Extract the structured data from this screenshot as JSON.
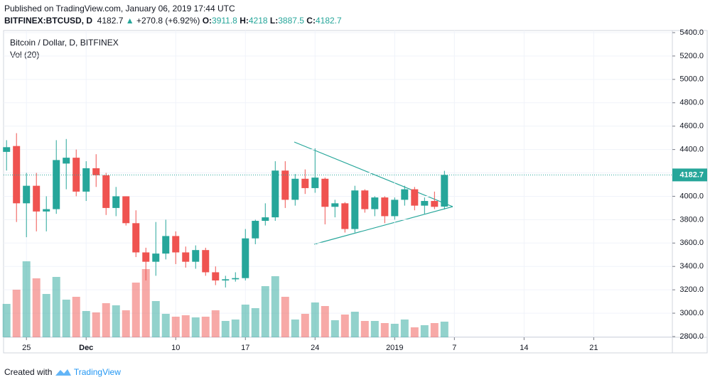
{
  "header": {
    "published": "Published on TradingView.com, January 06, 2019 17:44 UTC",
    "symbol": "BITFINEX:BTCUSD, D",
    "change": "+270.8 (+6.92%)",
    "o_label": "O:",
    "h_label": "H:",
    "l_label": "L:",
    "c_label": "C:"
  },
  "chart_data": {
    "type": "candlestick",
    "legend": "Bitcoin / Dollar, D, BITFINEX",
    "volume_legend": "Vol (20)",
    "up_color": "#26a69a",
    "down_color": "#ef5350",
    "open": [
      4380,
      4430,
      3940,
      4090,
      3870,
      3890,
      4280,
      4330,
      4040,
      4240,
      4180,
      3900,
      4000,
      3770,
      3520,
      3440,
      3510,
      3660,
      3520,
      3440,
      3540,
      3350,
      3280,
      3290,
      3300,
      3640,
      3790,
      3820,
      4220,
      3970,
      4150,
      4070,
      4150,
      3910,
      3940,
      3720,
      4050,
      3890,
      3990,
      3830,
      3970,
      4060,
      3920,
      3960,
      3911.8
    ],
    "high": [
      4480,
      4540,
      4200,
      4200,
      4000,
      4480,
      4490,
      4400,
      4300,
      4360,
      4200,
      4080,
      4000,
      3880,
      3560,
      3780,
      3800,
      3700,
      3570,
      3580,
      3560,
      3400,
      3320,
      3350,
      3720,
      3800,
      3940,
      4300,
      4300,
      4190,
      4230,
      4410,
      4160,
      3970,
      3950,
      4090,
      4060,
      4000,
      4000,
      3990,
      4090,
      4080,
      3990,
      4040,
      4218.0
    ],
    "low": [
      4220,
      3780,
      3650,
      3700,
      3700,
      3850,
      4060,
      4000,
      3960,
      4080,
      3840,
      3830,
      3750,
      3480,
      3280,
      3320,
      3460,
      3420,
      3390,
      3380,
      3320,
      3240,
      3220,
      3270,
      3280,
      3590,
      3750,
      3790,
      3900,
      3920,
      4020,
      4030,
      3760,
      3820,
      3690,
      3690,
      3860,
      3830,
      3770,
      3800,
      3920,
      3880,
      3850,
      3890,
      3887.5
    ],
    "close": [
      4420,
      3940,
      4090,
      3870,
      3890,
      4310,
      4330,
      4040,
      4240,
      4180,
      3900,
      4000,
      3770,
      3520,
      3440,
      3510,
      3660,
      3520,
      3440,
      3540,
      3350,
      3280,
      3290,
      3300,
      3640,
      3790,
      3820,
      4220,
      3970,
      4150,
      4070,
      4160,
      3910,
      3940,
      3720,
      4050,
      3890,
      3990,
      3830,
      3970,
      4060,
      3920,
      3960,
      3910,
      4182.7
    ],
    "volume": [
      47,
      67,
      107,
      83,
      61,
      85,
      53,
      57,
      37,
      35,
      48,
      45,
      38,
      77,
      96,
      51,
      33,
      29,
      31,
      28,
      29,
      38,
      23,
      25,
      46,
      41,
      72,
      86,
      57,
      25,
      33,
      49,
      44,
      24,
      32,
      36,
      23,
      23,
      20,
      19,
      25,
      14,
      17,
      20,
      22
    ],
    "xlim": [
      -0.3,
      66.9
    ],
    "xticks": [
      {
        "value": 2,
        "label": "25"
      },
      {
        "value": 8,
        "label": "Dec"
      },
      {
        "value": 17,
        "label": "10"
      },
      {
        "value": 24,
        "label": "17"
      },
      {
        "value": 31,
        "label": "24"
      },
      {
        "value": 39,
        "label": "2019"
      },
      {
        "value": 45,
        "label": "7"
      },
      {
        "value": 52,
        "label": "14"
      },
      {
        "value": 59,
        "label": "21"
      }
    ],
    "ylim": [
      2794,
      5418
    ],
    "yticks": [
      {
        "value": 2800,
        "label": "2800.0"
      },
      {
        "value": 3000,
        "label": "3000.0"
      },
      {
        "value": 3200,
        "label": "3200.0"
      },
      {
        "value": 3400,
        "label": "3400.0"
      },
      {
        "value": 3600,
        "label": "3600.0"
      },
      {
        "value": 3800,
        "label": "3800.0"
      },
      {
        "value": 4000,
        "label": "4000.0"
      },
      {
        "value": 4200,
        "label": "4200.0"
      },
      {
        "value": 4400,
        "label": "4400.0"
      },
      {
        "value": 4600,
        "label": "4600.0"
      },
      {
        "value": 4800,
        "label": "4800.0"
      },
      {
        "value": 5000,
        "label": "5000.0"
      },
      {
        "value": 5200,
        "label": "5200.0"
      },
      {
        "value": 5400,
        "label": "5400.0"
      }
    ],
    "grid": true
  },
  "footer": {
    "created": "Created with",
    "brand": "TradingView"
  }
}
